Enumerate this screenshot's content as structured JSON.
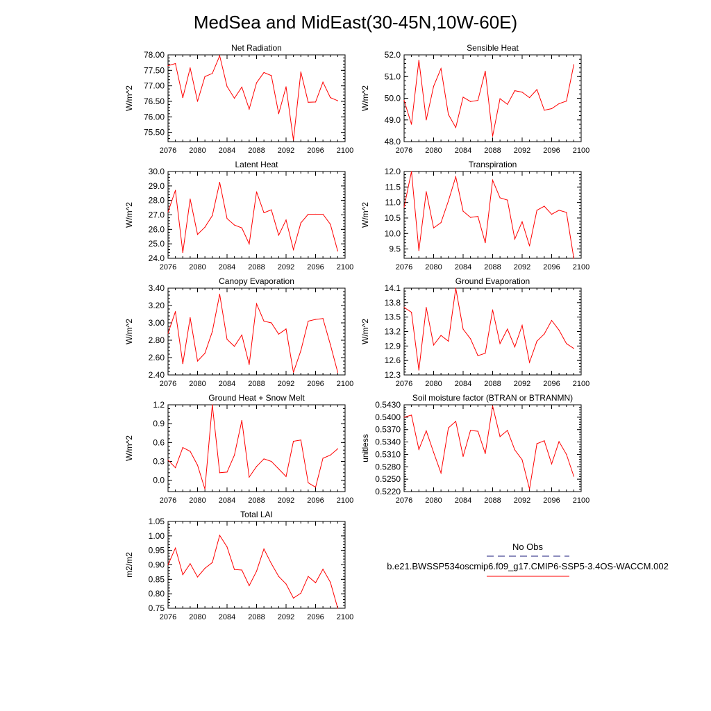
{
  "figure": {
    "title": "MedSea and MidEast(30-45N,10W-60E)"
  },
  "legend": {
    "obs_label": "No Obs",
    "model_label": "b.e21.BWSSP534oscmip6.f09_g17.CMIP6-SSP5-3.4OS-WACCM.002",
    "colors": {
      "obs": "#1a1a7a",
      "model": "#ff0000"
    }
  },
  "chart_data": [
    {
      "type": "line",
      "title": "Net Radiation",
      "ylabel": "W/m^2",
      "xlabel": "",
      "xlim": [
        2076,
        2100
      ],
      "ylim": [
        75.2,
        78.0
      ],
      "xticks": [
        2076,
        2080,
        2084,
        2088,
        2092,
        2096,
        2100
      ],
      "yticks": [
        75.5,
        76.0,
        76.5,
        77.0,
        77.5,
        78.0
      ],
      "ydecimals": 2,
      "series": [
        {
          "name": "b.e21.BWSSP534oscmip6.f09_g17.CMIP6-SSP5-3.4OS-WACCM.002",
          "color": "#ff0000",
          "x": [
            2076,
            2077,
            2078,
            2079,
            2080,
            2081,
            2082,
            2083,
            2084,
            2085,
            2086,
            2087,
            2088,
            2089,
            2090,
            2091,
            2092,
            2093,
            2094,
            2095,
            2096,
            2097,
            2098,
            2099
          ],
          "values": [
            77.65,
            77.72,
            76.62,
            77.58,
            76.5,
            77.3,
            77.4,
            77.97,
            76.98,
            76.6,
            76.96,
            76.25,
            77.1,
            77.43,
            77.33,
            76.1,
            76.97,
            75.25,
            77.45,
            76.47,
            76.48,
            77.12,
            76.62,
            76.52
          ]
        }
      ]
    },
    {
      "type": "line",
      "title": "Sensible Heat",
      "ylabel": "W/m^2",
      "xlabel": "",
      "xlim": [
        2076,
        2100
      ],
      "ylim": [
        48.0,
        52.0
      ],
      "xticks": [
        2076,
        2080,
        2084,
        2088,
        2092,
        2096,
        2100
      ],
      "yticks": [
        48.0,
        49.0,
        50.0,
        51.0,
        52.0
      ],
      "ydecimals": 1,
      "series": [
        {
          "name": "b.e21.BWSSP534oscmip6.f09_g17.CMIP6-SSP5-3.4OS-WACCM.002",
          "color": "#ff0000",
          "x": [
            2076,
            2077,
            2078,
            2079,
            2080,
            2081,
            2082,
            2083,
            2084,
            2085,
            2086,
            2087,
            2088,
            2089,
            2090,
            2091,
            2092,
            2093,
            2094,
            2095,
            2096,
            2097,
            2098,
            2099
          ],
          "values": [
            49.9,
            48.8,
            51.75,
            49.0,
            50.55,
            51.37,
            49.25,
            48.65,
            50.05,
            49.85,
            49.9,
            51.25,
            48.25,
            49.98,
            49.72,
            50.35,
            50.28,
            50.03,
            50.4,
            49.45,
            49.52,
            49.75,
            49.87,
            51.55
          ]
        }
      ]
    },
    {
      "type": "line",
      "title": "Latent Heat",
      "ylabel": "W/m^2",
      "xlabel": "",
      "xlim": [
        2076,
        2100
      ],
      "ylim": [
        24.0,
        30.0
      ],
      "xticks": [
        2076,
        2080,
        2084,
        2088,
        2092,
        2096,
        2100
      ],
      "yticks": [
        24.0,
        25.0,
        26.0,
        27.0,
        28.0,
        29.0,
        30.0
      ],
      "ydecimals": 1,
      "series": [
        {
          "name": "b.e21.BWSSP534oscmip6.f09_g17.CMIP6-SSP5-3.4OS-WACCM.002",
          "color": "#ff0000",
          "x": [
            2076,
            2077,
            2078,
            2079,
            2080,
            2081,
            2082,
            2083,
            2084,
            2085,
            2086,
            2087,
            2088,
            2089,
            2090,
            2091,
            2092,
            2093,
            2094,
            2095,
            2096,
            2097,
            2098,
            2099
          ],
          "values": [
            27.2,
            28.7,
            24.4,
            28.1,
            25.65,
            26.15,
            26.95,
            29.25,
            26.75,
            26.3,
            26.1,
            25.0,
            28.6,
            27.15,
            27.35,
            25.6,
            26.65,
            24.6,
            26.45,
            27.05,
            27.05,
            27.05,
            26.35,
            24.5
          ]
        }
      ]
    },
    {
      "type": "line",
      "title": "Transpiration",
      "ylabel": "W/m^2",
      "xlabel": "",
      "xlim": [
        2076,
        2100
      ],
      "ylim": [
        9.2,
        12.0
      ],
      "xticks": [
        2076,
        2080,
        2084,
        2088,
        2092,
        2096,
        2100
      ],
      "yticks": [
        9.5,
        10.0,
        10.5,
        11.0,
        11.5,
        12.0
      ],
      "ydecimals": 1,
      "series": [
        {
          "name": "b.e21.BWSSP534oscmip6.f09_g17.CMIP6-SSP5-3.4OS-WACCM.002",
          "color": "#ff0000",
          "x": [
            2076,
            2077,
            2078,
            2079,
            2080,
            2081,
            2082,
            2083,
            2084,
            2085,
            2086,
            2087,
            2088,
            2089,
            2090,
            2091,
            2092,
            2093,
            2094,
            2095,
            2096,
            2097,
            2098,
            2099
          ],
          "values": [
            10.85,
            12.0,
            9.45,
            11.35,
            10.18,
            10.35,
            11.05,
            11.83,
            10.72,
            10.52,
            10.55,
            9.7,
            11.72,
            11.15,
            11.08,
            9.82,
            10.38,
            9.6,
            10.75,
            10.88,
            10.62,
            10.75,
            10.68,
            9.2
          ]
        }
      ]
    },
    {
      "type": "line",
      "title": "Canopy Evaporation",
      "ylabel": "W/m^2",
      "xlabel": "",
      "xlim": [
        2076,
        2100
      ],
      "ylim": [
        2.4,
        3.4
      ],
      "xticks": [
        2076,
        2080,
        2084,
        2088,
        2092,
        2096,
        2100
      ],
      "yticks": [
        2.4,
        2.6,
        2.8,
        3.0,
        3.2,
        3.4
      ],
      "ydecimals": 2,
      "series": [
        {
          "name": "b.e21.BWSSP534oscmip6.f09_g17.CMIP6-SSP5-3.4OS-WACCM.002",
          "color": "#ff0000",
          "x": [
            2076,
            2077,
            2078,
            2079,
            2080,
            2081,
            2082,
            2083,
            2084,
            2085,
            2086,
            2087,
            2088,
            2089,
            2090,
            2091,
            2092,
            2093,
            2094,
            2095,
            2096,
            2097,
            2098,
            2099
          ],
          "values": [
            2.88,
            3.13,
            2.53,
            3.06,
            2.56,
            2.65,
            2.9,
            3.33,
            2.81,
            2.73,
            2.86,
            2.52,
            3.22,
            3.02,
            3.0,
            2.87,
            2.93,
            2.43,
            2.68,
            3.02,
            3.04,
            3.05,
            2.75,
            2.43
          ]
        }
      ]
    },
    {
      "type": "line",
      "title": "Ground Evaporation",
      "ylabel": "W/m^2",
      "xlabel": "",
      "xlim": [
        2076,
        2100
      ],
      "ylim": [
        12.3,
        14.1
      ],
      "xticks": [
        2076,
        2080,
        2084,
        2088,
        2092,
        2096,
        2100
      ],
      "yticks": [
        12.3,
        12.6,
        12.9,
        13.2,
        13.5,
        13.8,
        14.1
      ],
      "ydecimals": 1,
      "series": [
        {
          "name": "b.e21.BWSSP534oscmip6.f09_g17.CMIP6-SSP5-3.4OS-WACCM.002",
          "color": "#ff0000",
          "x": [
            2076,
            2077,
            2078,
            2079,
            2080,
            2081,
            2082,
            2083,
            2084,
            2085,
            2086,
            2087,
            2088,
            2089,
            2090,
            2091,
            2092,
            2093,
            2094,
            2095,
            2096,
            2097,
            2098,
            2099
          ],
          "values": [
            13.7,
            13.6,
            12.4,
            13.7,
            12.92,
            13.12,
            13.0,
            14.1,
            13.25,
            13.05,
            12.7,
            12.75,
            13.65,
            12.95,
            13.25,
            12.88,
            13.33,
            12.56,
            13.0,
            13.15,
            13.43,
            13.23,
            12.95,
            12.85
          ]
        }
      ]
    },
    {
      "type": "line",
      "title": "Ground Heat + Snow Melt",
      "ylabel": "W/m^2",
      "xlabel": "",
      "xlim": [
        2076,
        2100
      ],
      "ylim": [
        -0.18,
        1.2
      ],
      "xticks": [
        2076,
        2080,
        2084,
        2088,
        2092,
        2096,
        2100
      ],
      "yticks": [
        0.0,
        0.3,
        0.6,
        0.9,
        1.2
      ],
      "ydecimals": 1,
      "series": [
        {
          "name": "b.e21.BWSSP534oscmip6.f09_g17.CMIP6-SSP5-3.4OS-WACCM.002",
          "color": "#ff0000",
          "x": [
            2076,
            2077,
            2078,
            2079,
            2080,
            2081,
            2082,
            2083,
            2084,
            2085,
            2086,
            2087,
            2088,
            2089,
            2090,
            2091,
            2092,
            2093,
            2094,
            2095,
            2096,
            2097,
            2098,
            2099
          ],
          "values": [
            0.32,
            0.2,
            0.52,
            0.46,
            0.24,
            -0.14,
            1.2,
            0.12,
            0.13,
            0.4,
            0.95,
            0.05,
            0.22,
            0.34,
            0.3,
            0.18,
            0.06,
            0.62,
            0.64,
            -0.04,
            -0.11,
            0.35,
            0.4,
            0.5
          ]
        }
      ]
    },
    {
      "type": "line",
      "title": "Soil moisture factor (BTRAN or BTRANMN)",
      "ylabel": "unitless",
      "xlabel": "",
      "xlim": [
        2076,
        2100
      ],
      "ylim": [
        0.522,
        0.543
      ],
      "xticks": [
        2076,
        2080,
        2084,
        2088,
        2092,
        2096,
        2100
      ],
      "yticks": [
        0.522,
        0.525,
        0.528,
        0.531,
        0.534,
        0.537,
        0.54,
        0.543
      ],
      "ydecimals": 4,
      "series": [
        {
          "name": "b.e21.BWSSP534oscmip6.f09_g17.CMIP6-SSP5-3.4OS-WACCM.002",
          "color": "#ff0000",
          "x": [
            2076,
            2077,
            2078,
            2079,
            2080,
            2081,
            2082,
            2083,
            2084,
            2085,
            2086,
            2087,
            2088,
            2089,
            2090,
            2091,
            2092,
            2093,
            2094,
            2095,
            2096,
            2097,
            2098,
            2099
          ],
          "values": [
            0.54,
            0.5405,
            0.5322,
            0.5367,
            0.5315,
            0.5265,
            0.5374,
            0.539,
            0.5305,
            0.5368,
            0.5366,
            0.5312,
            0.5427,
            0.5353,
            0.5368,
            0.5321,
            0.5297,
            0.5226,
            0.5336,
            0.5343,
            0.5287,
            0.5341,
            0.531,
            0.5257
          ]
        }
      ]
    },
    {
      "type": "line",
      "title": "Total LAI",
      "ylabel": "m2/m2",
      "xlabel": "",
      "xlim": [
        2076,
        2100
      ],
      "ylim": [
        0.75,
        1.05
      ],
      "xticks": [
        2076,
        2080,
        2084,
        2088,
        2092,
        2096,
        2100
      ],
      "yticks": [
        0.75,
        0.8,
        0.85,
        0.9,
        0.95,
        1.0,
        1.05
      ],
      "ydecimals": 2,
      "series": [
        {
          "name": "b.e21.BWSSP534oscmip6.f09_g17.CMIP6-SSP5-3.4OS-WACCM.002",
          "color": "#ff0000",
          "x": [
            2076,
            2077,
            2078,
            2079,
            2080,
            2081,
            2082,
            2083,
            2084,
            2085,
            2086,
            2087,
            2088,
            2089,
            2090,
            2091,
            2092,
            2093,
            2094,
            2095,
            2096,
            2097,
            2098,
            2099
          ],
          "values": [
            0.9,
            0.958,
            0.866,
            0.904,
            0.858,
            0.888,
            0.908,
            1.002,
            0.962,
            0.884,
            0.882,
            0.828,
            0.878,
            0.955,
            0.904,
            0.86,
            0.834,
            0.785,
            0.802,
            0.86,
            0.838,
            0.885,
            0.84,
            0.75
          ]
        }
      ]
    }
  ]
}
